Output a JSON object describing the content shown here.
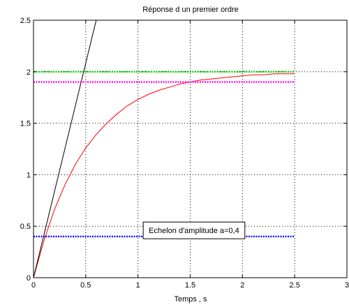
{
  "chart_data": {
    "type": "line",
    "title": "Réponse d un premier ordre",
    "xlabel": "Temps , s",
    "ylabel": "",
    "xlim": [
      0,
      3
    ],
    "ylim": [
      0,
      2.5
    ],
    "xticks": [
      0,
      0.5,
      1,
      1.5,
      2,
      2.5,
      3
    ],
    "yticks": [
      0,
      0.5,
      1,
      1.5,
      2,
      2.5
    ],
    "xtick_labels": [
      "0",
      "0.5",
      "1",
      "1.5",
      "2",
      "2.5",
      "3"
    ],
    "ytick_labels": [
      "0",
      "0.5",
      "1",
      "1.5",
      "2",
      "2.5"
    ],
    "grid": true,
    "annotation": {
      "text": "Echelon d'amplitude a=0,4",
      "x": 1.05,
      "y": 0.5
    },
    "series": [
      {
        "color": "#ff0000",
        "style": "solid",
        "x": [
          0,
          0.1,
          0.2,
          0.3,
          0.4,
          0.5,
          0.6,
          0.7,
          0.8,
          0.9,
          1.0,
          1.1,
          1.2,
          1.3,
          1.4,
          1.5,
          1.6,
          1.7,
          1.8,
          1.9,
          2.0,
          2.1,
          2.2,
          2.3,
          2.4,
          2.5
        ],
        "values": [
          0,
          0.36,
          0.66,
          0.9,
          1.1,
          1.26,
          1.39,
          1.5,
          1.59,
          1.67,
          1.73,
          1.78,
          1.82,
          1.85,
          1.88,
          1.9,
          1.92,
          1.93,
          1.94,
          1.95,
          1.96,
          1.97,
          1.97,
          1.98,
          1.98,
          1.98
        ]
      },
      {
        "color": "#000000",
        "style": "solid",
        "x": [
          0,
          0.6
        ],
        "values": [
          0,
          2.5
        ]
      },
      {
        "color": "#00cc00",
        "style": "dotted",
        "x": [
          0,
          2.5
        ],
        "values": [
          2,
          2
        ]
      },
      {
        "color": "#ff00ff",
        "style": "dotted",
        "x": [
          0,
          2.5
        ],
        "values": [
          1.9,
          1.9
        ]
      },
      {
        "color": "#0000ff",
        "style": "dotted",
        "x": [
          0,
          2.5
        ],
        "values": [
          0.4,
          0.4
        ]
      }
    ]
  }
}
